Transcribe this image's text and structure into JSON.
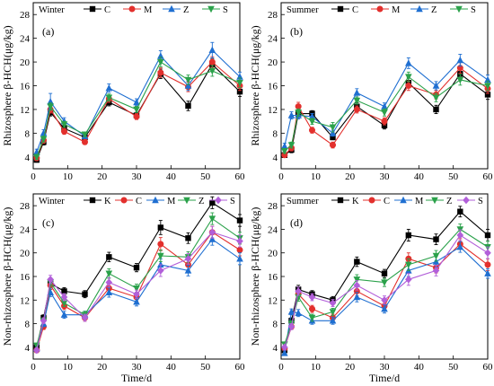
{
  "chart_data": [
    {
      "type": "line",
      "panel_label": "(a)",
      "legend_title": "Winter",
      "xlabel": "",
      "ylabel": "Rhizosphere β-HCH(μg/kg)",
      "xlim": [
        0,
        60
      ],
      "ylim": [
        2,
        30
      ],
      "xticks": [
        0,
        10,
        20,
        30,
        40,
        50,
        60
      ],
      "yticks": [
        4,
        8,
        12,
        16,
        20,
        24,
        28
      ],
      "x": [
        1,
        3,
        5,
        9,
        15,
        22,
        30,
        37,
        45,
        52,
        60
      ],
      "series": [
        {
          "name": "C",
          "color": "#000000",
          "marker": "square",
          "values": [
            3.5,
            6.5,
            11.5,
            8.8,
            7.3,
            13.2,
            11.0,
            18.0,
            12.6,
            19.6,
            15.0
          ],
          "errors": [
            0.4,
            0.5,
            0.6,
            0.5,
            0.4,
            0.6,
            0.5,
            0.8,
            0.8,
            0.9,
            0.8
          ]
        },
        {
          "name": "M",
          "color": "#e3302d",
          "marker": "circle",
          "values": [
            3.8,
            6.8,
            12.0,
            8.3,
            6.5,
            13.8,
            10.8,
            18.2,
            15.8,
            20.0,
            16.0
          ],
          "errors": [
            0.4,
            0.5,
            0.6,
            0.5,
            0.4,
            0.6,
            0.5,
            0.8,
            0.8,
            0.9,
            0.8
          ]
        },
        {
          "name": "Z",
          "color": "#1f6fd1",
          "marker": "triangle-up",
          "values": [
            4.8,
            8.0,
            13.3,
            10.0,
            7.5,
            15.6,
            13.2,
            21.0,
            16.0,
            22.0,
            17.5
          ],
          "errors": [
            0.5,
            0.6,
            1.4,
            0.6,
            0.4,
            0.7,
            0.6,
            0.9,
            0.8,
            1.3,
            0.8
          ]
        },
        {
          "name": "S",
          "color": "#2aa14a",
          "marker": "triangle-down",
          "values": [
            4.0,
            7.0,
            12.5,
            9.5,
            7.8,
            14.0,
            12.0,
            20.0,
            17.0,
            18.5,
            16.5
          ],
          "errors": [
            0.4,
            0.5,
            0.6,
            0.5,
            0.4,
            0.6,
            0.5,
            0.8,
            0.8,
            0.9,
            0.8
          ]
        }
      ]
    },
    {
      "type": "line",
      "panel_label": "(b)",
      "legend_title": "Summer",
      "xlabel": "",
      "ylabel": "Rhizosphere β-HCH(μg/kg)",
      "xlim": [
        0,
        60
      ],
      "ylim": [
        2,
        30
      ],
      "xticks": [
        0,
        10,
        20,
        30,
        40,
        50,
        60
      ],
      "yticks": [
        4,
        8,
        12,
        16,
        20,
        24,
        28
      ],
      "x": [
        1,
        3,
        5,
        9,
        15,
        22,
        30,
        37,
        45,
        52,
        60
      ],
      "series": [
        {
          "name": "C",
          "color": "#000000",
          "marker": "square",
          "values": [
            4.3,
            5.2,
            11.3,
            11.3,
            7.3,
            12.5,
            9.3,
            16.5,
            12.0,
            18.0,
            14.5
          ],
          "errors": [
            0.4,
            0.5,
            0.6,
            0.5,
            0.4,
            0.6,
            0.6,
            0.8,
            0.7,
            0.9,
            0.8
          ]
        },
        {
          "name": "M",
          "color": "#e3302d",
          "marker": "circle",
          "values": [
            4.3,
            5.5,
            12.5,
            8.5,
            6.0,
            12.0,
            10.0,
            16.0,
            14.5,
            19.0,
            15.5
          ],
          "errors": [
            0.4,
            0.5,
            0.7,
            0.5,
            0.5,
            0.6,
            0.6,
            0.8,
            0.7,
            0.9,
            0.8
          ]
        },
        {
          "name": "Z",
          "color": "#1f6fd1",
          "marker": "triangle-up",
          "values": [
            5.8,
            11.0,
            11.0,
            10.8,
            8.0,
            14.8,
            12.5,
            19.8,
            16.0,
            20.3,
            17.0
          ],
          "errors": [
            0.5,
            0.6,
            0.6,
            0.5,
            0.5,
            0.7,
            0.6,
            0.9,
            0.7,
            1.0,
            0.8
          ]
        },
        {
          "name": "S",
          "color": "#2aa14a",
          "marker": "triangle-down",
          "values": [
            5.0,
            6.0,
            11.5,
            10.0,
            9.0,
            13.5,
            11.5,
            17.5,
            14.0,
            17.0,
            16.0
          ],
          "errors": [
            0.4,
            0.5,
            0.6,
            0.5,
            0.8,
            0.6,
            0.6,
            0.8,
            0.7,
            0.9,
            0.8
          ]
        }
      ]
    },
    {
      "type": "line",
      "panel_label": "(c)",
      "legend_title": "Winter",
      "xlabel": "Time/d",
      "ylabel": "Non-rhizosphere β-HCH(μg/kg)",
      "xlim": [
        0,
        60
      ],
      "ylim": [
        2,
        30
      ],
      "xticks": [
        0,
        10,
        20,
        30,
        40,
        50,
        60
      ],
      "yticks": [
        4,
        8,
        12,
        16,
        20,
        24,
        28
      ],
      "x": [
        1,
        3,
        5,
        9,
        15,
        22,
        30,
        37,
        45,
        52,
        60
      ],
      "series": [
        {
          "name": "K",
          "color": "#000000",
          "marker": "square",
          "values": [
            4.0,
            9.0,
            14.8,
            13.5,
            13.0,
            19.3,
            17.5,
            24.3,
            22.5,
            28.5,
            25.5
          ],
          "errors": [
            0.4,
            0.5,
            0.7,
            0.6,
            0.6,
            0.8,
            0.7,
            1.2,
            0.9,
            1.0,
            1.0
          ]
        },
        {
          "name": "C",
          "color": "#e3302d",
          "marker": "circle",
          "values": [
            3.5,
            7.5,
            14.5,
            11.0,
            9.0,
            14.0,
            12.5,
            21.5,
            18.0,
            23.5,
            20.5
          ],
          "errors": [
            0.4,
            0.5,
            0.7,
            0.6,
            0.6,
            0.8,
            0.7,
            1.1,
            0.9,
            1.0,
            1.0
          ]
        },
        {
          "name": "M",
          "color": "#1f6fd1",
          "marker": "triangle-up",
          "values": [
            3.8,
            8.0,
            13.3,
            9.5,
            9.5,
            13.3,
            11.7,
            18.0,
            17.0,
            22.3,
            19.0
          ],
          "errors": [
            0.4,
            0.5,
            0.7,
            0.6,
            0.6,
            0.8,
            0.7,
            1.0,
            0.9,
            1.0,
            1.0
          ]
        },
        {
          "name": "Z",
          "color": "#2aa14a",
          "marker": "triangle-down",
          "values": [
            4.3,
            8.5,
            15.0,
            11.5,
            9.5,
            16.5,
            14.0,
            19.5,
            19.3,
            25.8,
            22.5
          ],
          "errors": [
            0.4,
            0.5,
            0.7,
            0.6,
            0.6,
            0.8,
            0.7,
            1.0,
            0.9,
            1.0,
            1.0
          ]
        },
        {
          "name": "S",
          "color": "#b25fd9",
          "marker": "diamond",
          "values": [
            3.5,
            8.5,
            15.5,
            12.5,
            9.0,
            15.0,
            13.0,
            17.0,
            19.0,
            23.5,
            22.0
          ],
          "errors": [
            0.4,
            0.5,
            0.7,
            0.6,
            0.6,
            0.8,
            0.7,
            1.0,
            0.9,
            1.0,
            1.0
          ]
        }
      ]
    },
    {
      "type": "line",
      "panel_label": "(d)",
      "legend_title": "Summer",
      "xlabel": "Time/d",
      "ylabel": "Non-rhizosphere β-HCH(μg/kg)",
      "xlim": [
        0,
        60
      ],
      "ylim": [
        2,
        30
      ],
      "xticks": [
        0,
        10,
        20,
        30,
        40,
        50,
        60
      ],
      "yticks": [
        4,
        8,
        12,
        16,
        20,
        24,
        28
      ],
      "x": [
        1,
        3,
        5,
        9,
        15,
        22,
        30,
        37,
        45,
        52,
        60
      ],
      "series": [
        {
          "name": "K",
          "color": "#000000",
          "marker": "square",
          "values": [
            3.5,
            8.5,
            13.8,
            13.0,
            12.0,
            18.5,
            16.5,
            23.0,
            22.3,
            27.0,
            23.0
          ],
          "errors": [
            0.4,
            0.5,
            0.7,
            0.6,
            0.6,
            0.8,
            0.7,
            1.0,
            0.9,
            0.9,
            1.0
          ]
        },
        {
          "name": "C",
          "color": "#e3302d",
          "marker": "circle",
          "values": [
            3.8,
            7.5,
            13.0,
            10.5,
            9.0,
            13.5,
            11.0,
            19.0,
            17.5,
            21.5,
            18.0
          ],
          "errors": [
            0.4,
            0.5,
            0.7,
            0.6,
            0.6,
            0.8,
            0.7,
            1.0,
            0.9,
            0.9,
            1.0
          ]
        },
        {
          "name": "M",
          "color": "#1f6fd1",
          "marker": "triangle-up",
          "values": [
            3.0,
            10.0,
            9.8,
            8.5,
            8.5,
            12.5,
            10.5,
            17.0,
            18.5,
            21.0,
            16.5
          ],
          "errors": [
            0.4,
            0.5,
            0.6,
            0.6,
            0.6,
            0.8,
            0.7,
            1.0,
            0.9,
            0.9,
            0.8
          ]
        },
        {
          "name": "Z",
          "color": "#2aa14a",
          "marker": "triangle-down",
          "values": [
            4.5,
            8.0,
            12.5,
            9.0,
            10.0,
            15.5,
            15.0,
            18.0,
            19.5,
            24.0,
            21.0
          ],
          "errors": [
            0.4,
            0.5,
            0.7,
            0.6,
            0.6,
            0.8,
            0.7,
            1.0,
            0.9,
            0.9,
            1.0
          ]
        },
        {
          "name": "S",
          "color": "#b25fd9",
          "marker": "diamond",
          "values": [
            4.0,
            7.5,
            13.5,
            12.5,
            11.5,
            14.5,
            12.0,
            15.5,
            17.0,
            23.0,
            20.0
          ],
          "errors": [
            0.4,
            0.5,
            0.7,
            0.6,
            0.6,
            0.8,
            0.7,
            1.0,
            0.9,
            0.9,
            1.0
          ]
        }
      ]
    }
  ]
}
